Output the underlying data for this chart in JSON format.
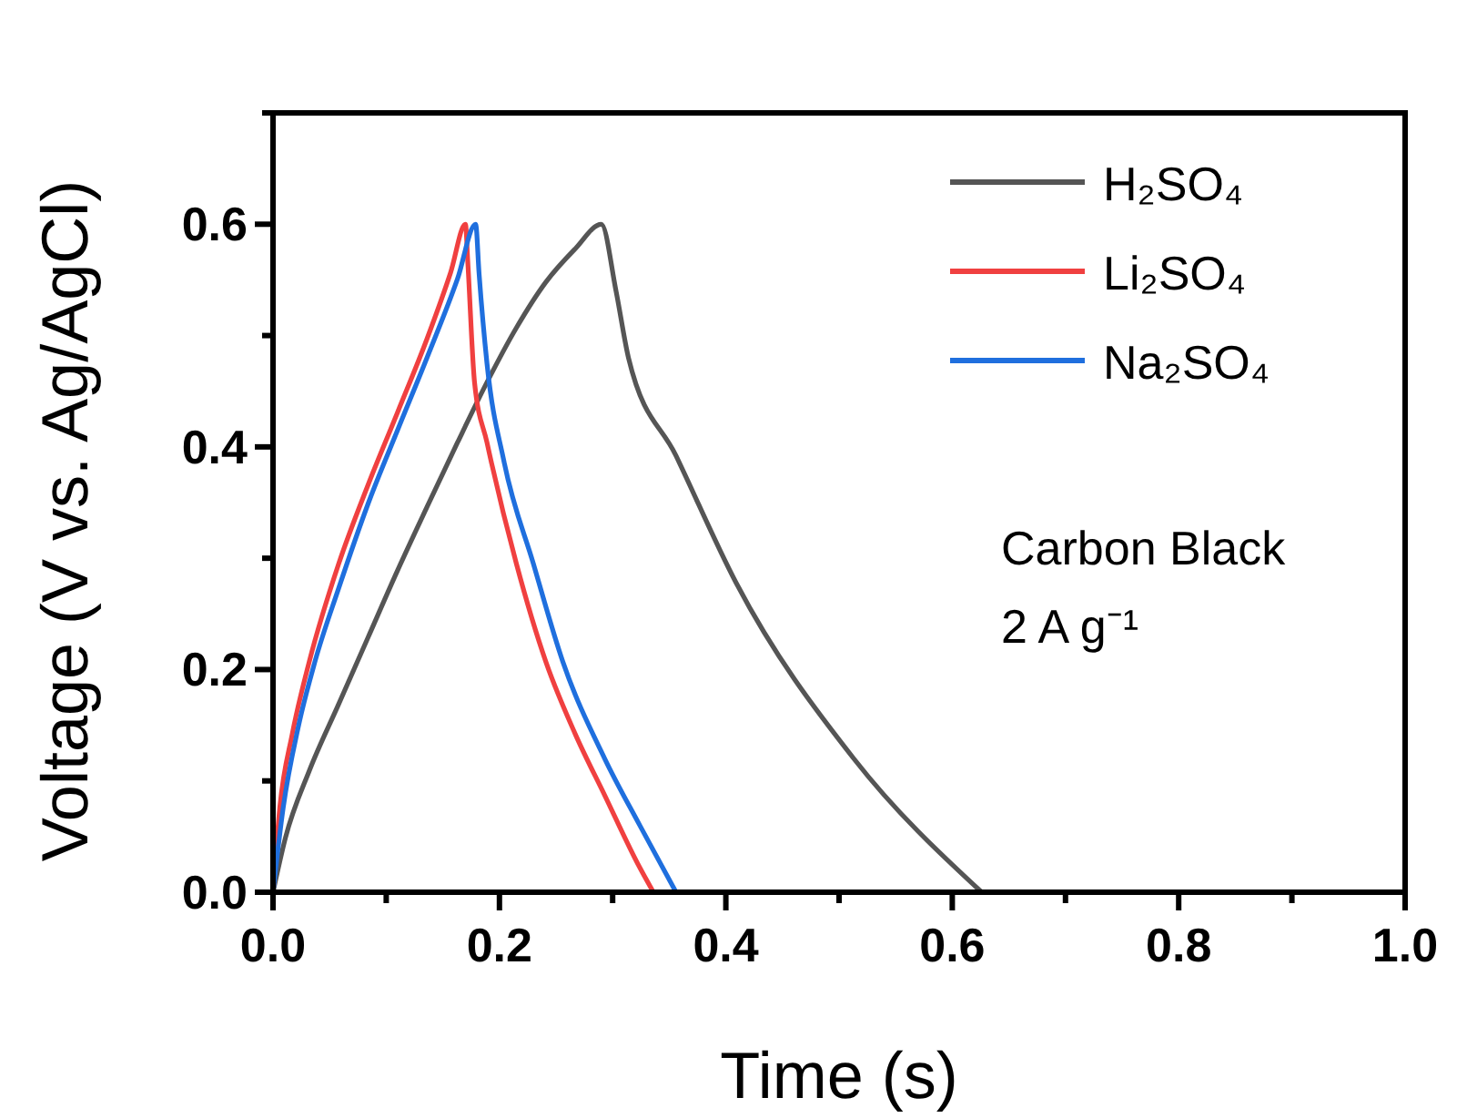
{
  "chart_data": {
    "type": "line",
    "xlabel": "Time (s)",
    "ylabel": "Voltage (V vs. Ag/AgCl)",
    "xlim": [
      0,
      1.0
    ],
    "ylim": [
      0,
      0.7
    ],
    "xticks": [
      {
        "value": 0,
        "label": "0.0"
      },
      {
        "value": 0.1,
        "label": null
      },
      {
        "value": 0.2,
        "label": "0.2"
      },
      {
        "value": 0.3,
        "label": null
      },
      {
        "value": 0.4,
        "label": "0.4"
      },
      {
        "value": 0.5,
        "label": null
      },
      {
        "value": 0.6,
        "label": "0.6"
      },
      {
        "value": 0.7,
        "label": null
      },
      {
        "value": 0.8,
        "label": "0.8"
      },
      {
        "value": 0.9,
        "label": null
      },
      {
        "value": 1.0,
        "label": "1.0"
      }
    ],
    "yticks": [
      {
        "value": 0,
        "label": "0.0"
      },
      {
        "value": 0.1,
        "label": null
      },
      {
        "value": 0.2,
        "label": "0.2"
      },
      {
        "value": 0.3,
        "label": null
      },
      {
        "value": 0.4,
        "label": "0.4"
      },
      {
        "value": 0.5,
        "label": null
      },
      {
        "value": 0.6,
        "label": "0.6"
      },
      {
        "value": 0.7,
        "label": null
      }
    ],
    "grid": false,
    "legend": "top right",
    "marker": "none",
    "line_style": "solid",
    "annotations": [
      "Carbon Black",
      "2 A g⁻¹"
    ],
    "series": [
      {
        "name": "H₂SO₄",
        "color": "#555555",
        "x": [
          0,
          0.011,
          0.032,
          0.058,
          0.084,
          0.11,
          0.136,
          0.163,
          0.189,
          0.215,
          0.241,
          0.267,
          0.29,
          0.303,
          0.314,
          0.356,
          0.409,
          0.513,
          0.626
        ],
        "values": [
          0,
          0.049,
          0.109,
          0.169,
          0.229,
          0.289,
          0.346,
          0.404,
          0.458,
          0.507,
          0.548,
          0.578,
          0.6,
          0.54,
          0.48,
          0.392,
          0.278,
          0.12,
          0
        ]
      },
      {
        "name": "Li₂SO₄",
        "color": "#f04040",
        "x": [
          0,
          0.006,
          0.017,
          0.032,
          0.058,
          0.084,
          0.11,
          0.136,
          0.157,
          0.17,
          0.172,
          0.178,
          0.189,
          0.215,
          0.241,
          0.267,
          0.293,
          0.324,
          0.336
        ],
        "values": [
          0,
          0.076,
          0.142,
          0.207,
          0.295,
          0.366,
          0.431,
          0.497,
          0.557,
          0.6,
          0.567,
          0.458,
          0.404,
          0.295,
          0.207,
          0.142,
          0.087,
          0.022,
          0
        ]
      },
      {
        "name": "Na₂SO₄",
        "color": "#1f6fde",
        "x": [
          0,
          0.009,
          0.022,
          0.037,
          0.058,
          0.084,
          0.11,
          0.136,
          0.163,
          0.179,
          0.182,
          0.189,
          0.204,
          0.23,
          0.256,
          0.293,
          0.324,
          0.356
        ],
        "values": [
          0,
          0.076,
          0.147,
          0.207,
          0.273,
          0.349,
          0.415,
          0.48,
          0.551,
          0.6,
          0.556,
          0.475,
          0.387,
          0.295,
          0.207,
          0.12,
          0.06,
          0
        ]
      }
    ]
  }
}
